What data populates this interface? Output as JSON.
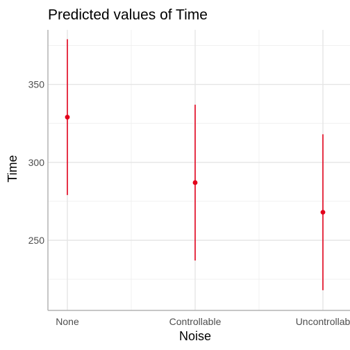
{
  "chart_data": {
    "type": "scatter",
    "title": "Predicted values of Time",
    "xlabel": "Noise",
    "ylabel": "Time",
    "categories": [
      "None",
      "Controllable",
      "Uncontrollable"
    ],
    "category_labels": [
      "None",
      "Controllable",
      "Uncontrollab"
    ],
    "series": [
      {
        "values": [
          329,
          287,
          268
        ],
        "ci_low": [
          279,
          237,
          218
        ],
        "ci_high": [
          379,
          337,
          318
        ]
      }
    ],
    "y_ticks": [
      250,
      300,
      350
    ],
    "y_tick_labels": [
      "250",
      "300",
      "350"
    ],
    "ylim": [
      205,
      385
    ],
    "grid": true,
    "legend": "none",
    "colors": {
      "point": "#e3001b",
      "grid_major": "#e5e5e5",
      "grid_minor": "#f0f0f0",
      "axis_line": "#b3b3b3"
    }
  }
}
